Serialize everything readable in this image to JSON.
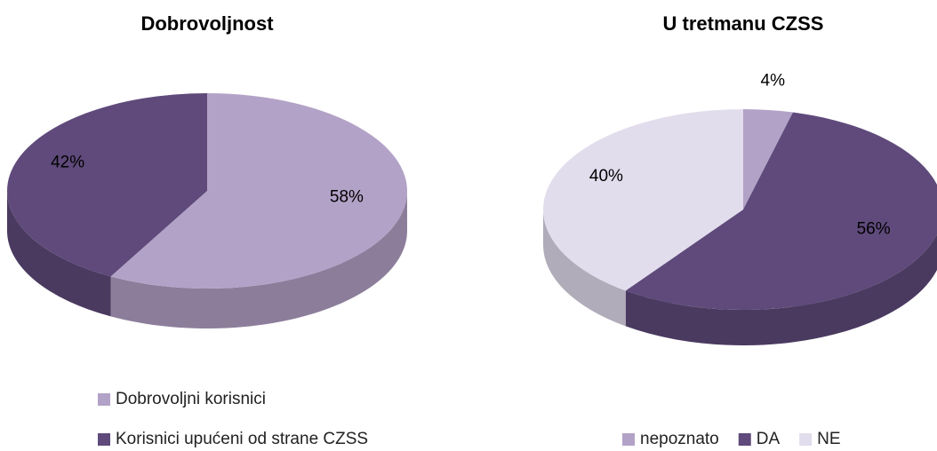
{
  "chart_data": [
    {
      "type": "pie",
      "title": "Dobrovoljnost",
      "categories": [
        "Dobrovoljni korisnici",
        "Korisnici upućeni od strane CZSS"
      ],
      "values": [
        58,
        42
      ],
      "value_labels": [
        "58%",
        "42%"
      ],
      "colors": [
        "#b3a2c7",
        "#5f4a7b"
      ],
      "legend": "bottom"
    },
    {
      "type": "pie",
      "title": "U tretmanu CZSS",
      "categories": [
        "nepoznato",
        "DA",
        "NE"
      ],
      "values": [
        4,
        56,
        40
      ],
      "value_labels": [
        "4%",
        "56%",
        "40%"
      ],
      "colors": [
        "#b3a2c7",
        "#5f4a7b",
        "#e2dded"
      ],
      "legend": "bottom"
    }
  ]
}
